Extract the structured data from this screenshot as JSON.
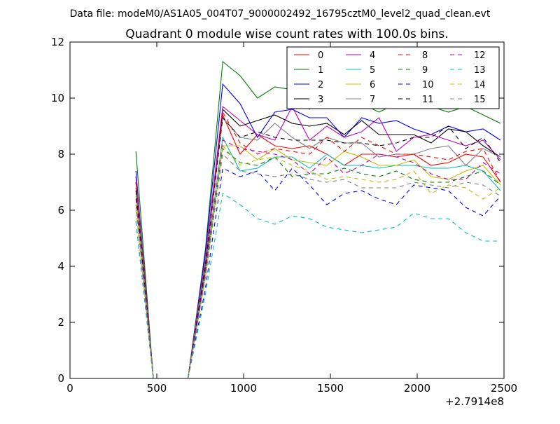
{
  "suptitle": "Data file: modeM0/AS1A05_004T07_9000002492_16795cztM0_level2_quad_clean.evt",
  "chart_data": {
    "type": "line",
    "title": "Quadrant 0 module wise count rates with 100.0s bins.",
    "xlabel": "",
    "ylabel": "",
    "x_offset_label": "+2.7914e8",
    "xlim": [
      0,
      2500
    ],
    "ylim": [
      0,
      12
    ],
    "xticks": [
      0,
      500,
      1000,
      1500,
      2000,
      2500
    ],
    "yticks": [
      0,
      2,
      4,
      6,
      8,
      10,
      12
    ],
    "xtick_labels": [
      "0",
      "500",
      "1000",
      "1500",
      "2000",
      "2500"
    ],
    "ytick_labels": [
      "0",
      "2",
      "4",
      "6",
      "8",
      "10",
      "12"
    ],
    "grid": false,
    "legend_position": "top-right",
    "x": [
      380,
      480,
      580,
      680,
      780,
      880,
      980,
      1080,
      1180,
      1280,
      1380,
      1480,
      1580,
      1680,
      1780,
      1880,
      1980,
      2080,
      2180,
      2280,
      2380,
      2480
    ],
    "series": [
      {
        "name": "0",
        "color": "#ff0000",
        "dash": "solid",
        "values": [
          6.8,
          0,
          0,
          0,
          4.0,
          9.4,
          8.0,
          8.7,
          8.3,
          8.2,
          8.3,
          8.0,
          7.6,
          8.0,
          8.0,
          7.9,
          8.0,
          7.6,
          7.7,
          8.0,
          7.9,
          7.0
        ]
      },
      {
        "name": "1",
        "color": "#007f00",
        "dash": "solid",
        "values": [
          8.1,
          0,
          0,
          0,
          4.6,
          11.3,
          10.8,
          10.0,
          10.4,
          10.3,
          9.6,
          10.2,
          10.0,
          9.8,
          9.5,
          9.8,
          9.9,
          9.7,
          9.5,
          9.7,
          9.4,
          9.1
        ]
      },
      {
        "name": "2",
        "color": "#0000ff",
        "dash": "solid",
        "values": [
          7.4,
          0,
          0,
          0,
          4.5,
          10.5,
          9.8,
          8.6,
          9.5,
          9.6,
          9.3,
          9.3,
          8.6,
          9.3,
          9.1,
          9.2,
          8.9,
          8.7,
          9.0,
          8.8,
          8.9,
          8.5
        ]
      },
      {
        "name": "3",
        "color": "#000000",
        "dash": "solid",
        "values": [
          7.0,
          0,
          0,
          0,
          4.2,
          9.6,
          9.0,
          9.2,
          9.4,
          9.1,
          9.0,
          9.1,
          8.7,
          9.2,
          8.7,
          8.7,
          8.7,
          8.4,
          8.9,
          8.8,
          8.3,
          7.9
        ]
      },
      {
        "name": "4",
        "color": "#bf00bf",
        "dash": "solid",
        "values": [
          7.2,
          0,
          0,
          0,
          4.3,
          9.7,
          9.2,
          8.7,
          8.5,
          9.7,
          8.5,
          9.0,
          8.6,
          8.8,
          9.3,
          8.1,
          8.6,
          8.7,
          8.5,
          8.3,
          8.5,
          7.8
        ]
      },
      {
        "name": "5",
        "color": "#00bfbf",
        "dash": "solid",
        "values": [
          6.6,
          0,
          0,
          0,
          3.9,
          8.6,
          7.4,
          7.5,
          7.9,
          7.9,
          7.5,
          8.0,
          7.6,
          7.6,
          7.5,
          7.6,
          7.6,
          7.5,
          7.5,
          7.6,
          7.4,
          6.7
        ]
      },
      {
        "name": "6",
        "color": "#bfbf00",
        "dash": "solid",
        "values": [
          6.5,
          0,
          0,
          0,
          3.6,
          8.3,
          8.3,
          7.8,
          8.2,
          7.8,
          7.7,
          7.6,
          8.1,
          7.9,
          7.6,
          7.6,
          7.8,
          7.2,
          7.1,
          7.4,
          7.6,
          6.9
        ]
      },
      {
        "name": "7",
        "color": "#7f7f7f",
        "dash": "solid",
        "values": [
          7.0,
          0,
          0,
          0,
          4.2,
          9.3,
          8.6,
          8.5,
          9.1,
          8.6,
          8.2,
          8.6,
          8.4,
          8.4,
          7.9,
          8.0,
          8.0,
          8.2,
          8.3,
          7.6,
          8.2,
          7.9
        ]
      },
      {
        "name": "8",
        "color": "#ff0000",
        "dash": "dashed",
        "values": [
          7.0,
          0,
          0,
          0,
          4.1,
          9.5,
          8.4,
          8.0,
          8.2,
          8.1,
          8.0,
          8.6,
          8.1,
          8.6,
          8.3,
          8.0,
          8.0,
          7.9,
          7.8,
          8.1,
          8.2,
          7.0
        ]
      },
      {
        "name": "9",
        "color": "#007f00",
        "dash": "dashed",
        "values": [
          6.2,
          0,
          0,
          0,
          3.8,
          8.2,
          7.7,
          7.6,
          7.9,
          7.2,
          7.3,
          7.3,
          7.5,
          7.3,
          7.2,
          7.4,
          7.1,
          7.0,
          7.0,
          7.2,
          7.4,
          6.9
        ]
      },
      {
        "name": "10",
        "color": "#0000ff",
        "dash": "dashed",
        "values": [
          5.6,
          0,
          0,
          0,
          3.2,
          7.5,
          7.2,
          7.4,
          6.7,
          7.5,
          6.9,
          6.2,
          6.6,
          6.7,
          6.4,
          6.2,
          6.9,
          6.8,
          6.7,
          6.1,
          5.8,
          6.5
        ]
      },
      {
        "name": "11",
        "color": "#000000",
        "dash": "dashed",
        "values": [
          6.7,
          0,
          0,
          0,
          4.0,
          9.3,
          8.6,
          8.8,
          8.6,
          8.5,
          8.5,
          8.5,
          8.4,
          8.4,
          8.3,
          8.4,
          8.6,
          8.6,
          9.0,
          8.2,
          8.6,
          7.7
        ]
      },
      {
        "name": "12",
        "color": "#bf00bf",
        "dash": "dashed",
        "values": [
          6.4,
          0,
          0,
          0,
          3.8,
          8.5,
          8.2,
          8.1,
          8.0,
          7.8,
          7.3,
          7.9,
          7.3,
          7.6,
          8.0,
          7.9,
          7.7,
          7.3,
          7.1,
          7.1,
          7.7,
          7.3
        ]
      },
      {
        "name": "13",
        "color": "#00bfbf",
        "dash": "dashed",
        "values": [
          5.6,
          0,
          0,
          0,
          3.0,
          6.6,
          6.2,
          5.7,
          5.5,
          5.8,
          5.7,
          5.4,
          5.3,
          5.2,
          5.3,
          5.4,
          5.9,
          5.7,
          5.7,
          5.2,
          4.9,
          4.9
        ]
      },
      {
        "name": "14",
        "color": "#bfbf00",
        "dash": "dashed",
        "values": [
          6.0,
          0,
          0,
          0,
          3.6,
          8.3,
          7.6,
          7.8,
          7.9,
          7.6,
          7.4,
          7.1,
          7.2,
          7.1,
          7.0,
          7.1,
          7.4,
          6.6,
          6.9,
          6.8,
          6.4,
          6.8
        ]
      },
      {
        "name": "15",
        "color": "#7f7f7f",
        "dash": "dashed",
        "values": [
          6.2,
          0,
          0,
          0,
          3.6,
          8.0,
          7.4,
          7.3,
          7.2,
          7.3,
          7.1,
          7.0,
          7.1,
          6.8,
          6.8,
          6.8,
          7.0,
          6.9,
          6.8,
          7.0,
          6.9,
          6.5
        ]
      }
    ]
  }
}
